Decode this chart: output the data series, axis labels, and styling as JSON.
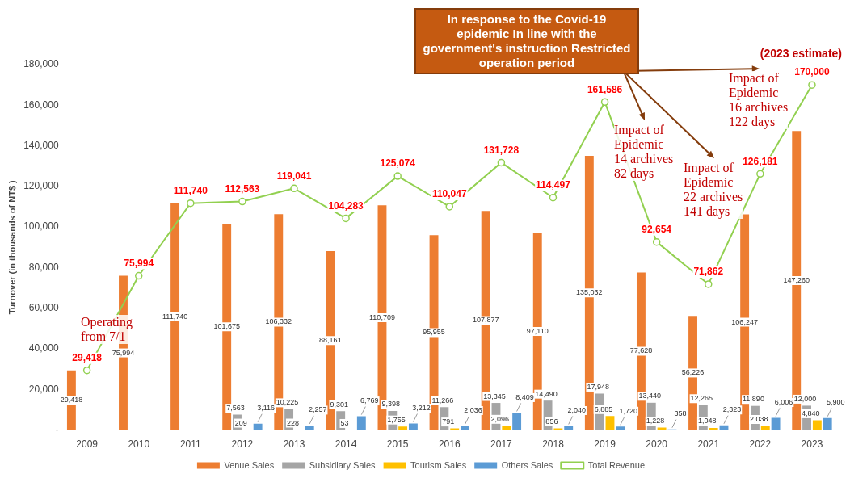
{
  "chart_data": {
    "type": "bar",
    "ylabel": "Turnover (in thousands of NT$ )",
    "categories": [
      "2009",
      "2010",
      "2011",
      "2012",
      "2013",
      "2014",
      "2015",
      "2016",
      "2017",
      "2018",
      "2019",
      "2020",
      "2021",
      "2022",
      "2023"
    ],
    "series": [
      {
        "name": "Venue Sales",
        "color": "#ed7d31",
        "values": [
          29418,
          75994,
          111740,
          101675,
          106332,
          88161,
          110709,
          95955,
          107877,
          97110,
          135032,
          77628,
          56226,
          106247,
          147260
        ],
        "value_labels": [
          "29,418",
          "75,994",
          "111,740",
          "101,675",
          "106,332",
          "88,161",
          "110,709",
          "95,955",
          "107,877",
          "97,110",
          "135,032",
          "77,628",
          "56,226",
          "106,247",
          "147,260"
        ]
      },
      {
        "name": "Subsidiary Sales",
        "color": "#a5a5a5",
        "values": [
          null,
          null,
          null,
          7563,
          10225,
          9301,
          9398,
          11266,
          13345,
          14490,
          17948,
          13440,
          12265,
          11890,
          12000
        ],
        "value_labels": [
          null,
          null,
          null,
          "7,563",
          "10,225",
          "9,301",
          "9,398",
          "11,266",
          "13,345",
          "14,490",
          "17,948",
          "13,440",
          "12,265",
          "11,890",
          "12,000"
        ]
      },
      {
        "name": "Tourism Sales",
        "color": "#ffc000",
        "values": [
          null,
          null,
          null,
          209,
          228,
          53,
          1755,
          791,
          2096,
          856,
          6885,
          1228,
          1048,
          2038,
          4840
        ],
        "value_labels": [
          null,
          null,
          null,
          "209",
          "228",
          "53",
          "1,755",
          "791",
          "2,096",
          "856",
          "6,885",
          "1,228",
          "1,048",
          "2,038",
          "4,840"
        ]
      },
      {
        "name": "Others Sales",
        "color": "#5b9bd5",
        "values": [
          null,
          null,
          null,
          3116,
          2257,
          6769,
          3212,
          2036,
          8409,
          2040,
          1720,
          358,
          2323,
          6006,
          5900
        ],
        "value_labels": [
          null,
          null,
          null,
          "3,116",
          "2,257",
          "6,769",
          "3,212",
          "2,036",
          "8,409",
          "2,040",
          "1,720",
          "358",
          "2,323",
          "6,006",
          "5,900"
        ]
      },
      {
        "name": "Total Revenue",
        "type": "line",
        "color": "#92d050",
        "marker": "circle",
        "values": [
          29418,
          75994,
          111740,
          112563,
          119041,
          104283,
          125074,
          110047,
          131728,
          114497,
          161586,
          92654,
          71862,
          126181,
          170000
        ],
        "value_labels": [
          "29,418",
          "75,994",
          "111,740",
          "112,563",
          "119,041",
          "104,283",
          "125,074",
          "110,047",
          "131,728",
          "114,497",
          "161,586",
          "92,654",
          "71,862",
          "126,181",
          "170,000"
        ]
      }
    ],
    "ylim": [
      0,
      180000
    ],
    "yticks": [
      {
        "value": 0,
        "label": "-"
      },
      {
        "value": 20000,
        "label": "20,000"
      },
      {
        "value": 40000,
        "label": "40,000"
      },
      {
        "value": 60000,
        "label": "60,000"
      },
      {
        "value": 80000,
        "label": "80,000"
      },
      {
        "value": 100000,
        "label": "100,000"
      },
      {
        "value": 120000,
        "label": "120,000"
      },
      {
        "value": 140000,
        "label": "140,000"
      },
      {
        "value": 160000,
        "label": "160,000"
      },
      {
        "value": 180000,
        "label": "180,000"
      }
    ],
    "legend": "bottom",
    "annotations": [
      "In response to the Covid-19 epidemic In line with the government's instruction Restricted operation period",
      "(2023 estimate)",
      "Operating\nfrom 7/1",
      "Impact of\nEpidemic\n14 archives\n82 days",
      "Impact of\nEpidemic\n22 archives\n141 days",
      "Impact of\nEpidemic\n16 archives\n122 days"
    ]
  }
}
